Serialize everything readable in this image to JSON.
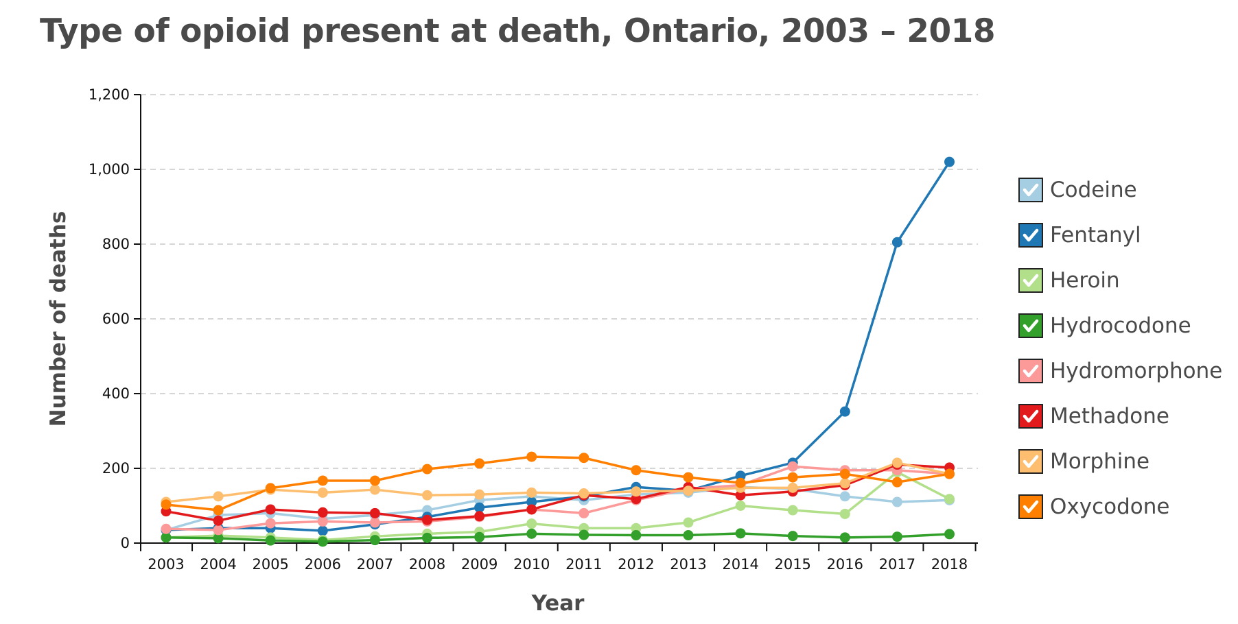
{
  "chart_data": {
    "type": "line",
    "title": "Type of opioid present at death, Ontario, 2003 – 2018",
    "xlabel": "Year",
    "ylabel": "Number of deaths",
    "ylim": [
      0,
      1200
    ],
    "yticks": [
      0,
      200,
      400,
      600,
      800,
      1000,
      1200
    ],
    "ytick_labels": [
      "0",
      "200",
      "400",
      "600",
      "800",
      "1,000",
      "1,200"
    ],
    "grid": "horizontal dashed",
    "legend": "right",
    "x": [
      "2003",
      "2004",
      "2005",
      "2006",
      "2007",
      "2008",
      "2009",
      "2010",
      "2011",
      "2012",
      "2013",
      "2014",
      "2015",
      "2016",
      "2017",
      "2018"
    ],
    "series": [
      {
        "name": "Codeine",
        "color": "#a6cee3",
        "values": [
          35,
          75,
          80,
          65,
          75,
          88,
          115,
          125,
          115,
          130,
          135,
          150,
          145,
          125,
          110,
          115
        ]
      },
      {
        "name": "Fentanyl",
        "color": "#1f78b4",
        "values": [
          35,
          40,
          40,
          33,
          50,
          70,
          95,
          110,
          125,
          150,
          140,
          180,
          215,
          352,
          805,
          1020
        ]
      },
      {
        "name": "Heroin",
        "color": "#b2df8a",
        "values": [
          15,
          20,
          15,
          8,
          18,
          25,
          30,
          52,
          40,
          40,
          55,
          100,
          88,
          78,
          190,
          118
        ]
      },
      {
        "name": "Hydrocodone",
        "color": "#33a02c",
        "values": [
          15,
          13,
          7,
          4,
          8,
          14,
          16,
          25,
          22,
          21,
          21,
          26,
          19,
          15,
          17,
          24
        ]
      },
      {
        "name": "Hydromorphone",
        "color": "#fb9a99",
        "values": [
          38,
          35,
          53,
          58,
          55,
          58,
          70,
          90,
          80,
          115,
          145,
          155,
          205,
          195,
          195,
          185
        ]
      },
      {
        "name": "Methadone",
        "color": "#e31a1c",
        "values": [
          85,
          60,
          90,
          82,
          80,
          62,
          72,
          90,
          128,
          118,
          150,
          128,
          138,
          155,
          210,
          202
        ]
      },
      {
        "name": "Morphine",
        "color": "#fdbf6f",
        "values": [
          110,
          125,
          143,
          135,
          143,
          128,
          130,
          135,
          133,
          138,
          140,
          148,
          148,
          160,
          215,
          185
        ]
      },
      {
        "name": "Oxycodone",
        "color": "#ff7f00",
        "values": [
          103,
          88,
          147,
          167,
          167,
          198,
          213,
          231,
          228,
          195,
          176,
          161,
          176,
          185,
          163,
          185
        ]
      }
    ]
  }
}
